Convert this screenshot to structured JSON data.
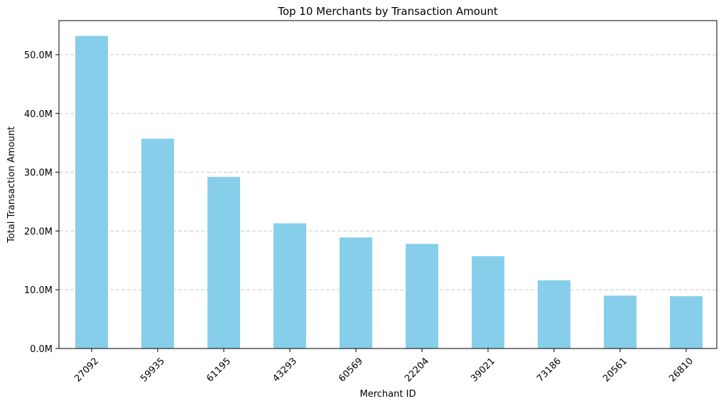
{
  "chart_data": {
    "type": "bar",
    "title": "Top 10 Merchants by Transaction Amount",
    "xlabel": "Merchant ID",
    "ylabel": "Total Transaction Amount",
    "categories": [
      "27092",
      "59935",
      "61195",
      "43293",
      "60569",
      "22204",
      "39021",
      "73186",
      "20561",
      "26810"
    ],
    "values": [
      53200000,
      35700000,
      29200000,
      21300000,
      18900000,
      17800000,
      15700000,
      11600000,
      9000000,
      8900000
    ],
    "ylim": [
      0,
      55800000
    ],
    "yticks": [
      0,
      10000000,
      20000000,
      30000000,
      40000000,
      50000000
    ],
    "ytick_labels": [
      "0.0M",
      "10.0M",
      "20.0M",
      "30.0M",
      "40.0M",
      "50.0M"
    ],
    "bar_color": "#87CEEB",
    "grid": "y, dashed",
    "xtick_rotation": 45
  }
}
